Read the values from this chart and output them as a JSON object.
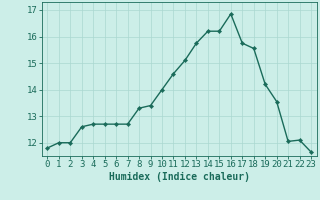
{
  "x": [
    0,
    1,
    2,
    3,
    4,
    5,
    6,
    7,
    8,
    9,
    10,
    11,
    12,
    13,
    14,
    15,
    16,
    17,
    18,
    19,
    20,
    21,
    22,
    23
  ],
  "y": [
    11.8,
    12.0,
    12.0,
    12.6,
    12.7,
    12.7,
    12.7,
    12.7,
    13.3,
    13.4,
    14.0,
    14.6,
    15.1,
    15.75,
    16.2,
    16.2,
    16.85,
    15.75,
    15.55,
    14.2,
    13.55,
    12.05,
    12.1,
    11.65
  ],
  "line_color": "#1a6b5a",
  "marker": "D",
  "marker_size": 2.2,
  "bg_color": "#cceee8",
  "grid_color": "#aad8d0",
  "xlabel": "Humidex (Indice chaleur)",
  "ylim": [
    11.5,
    17.3
  ],
  "xlim": [
    -0.5,
    23.5
  ],
  "yticks": [
    12,
    13,
    14,
    15,
    16,
    17
  ],
  "xticks": [
    0,
    1,
    2,
    3,
    4,
    5,
    6,
    7,
    8,
    9,
    10,
    11,
    12,
    13,
    14,
    15,
    16,
    17,
    18,
    19,
    20,
    21,
    22,
    23
  ],
  "xlabel_fontsize": 7,
  "tick_fontsize": 6.5,
  "tick_color": "#1a6b5a",
  "axis_color": "#1a6b5a",
  "linewidth": 1.0,
  "grid_linewidth": 0.5
}
